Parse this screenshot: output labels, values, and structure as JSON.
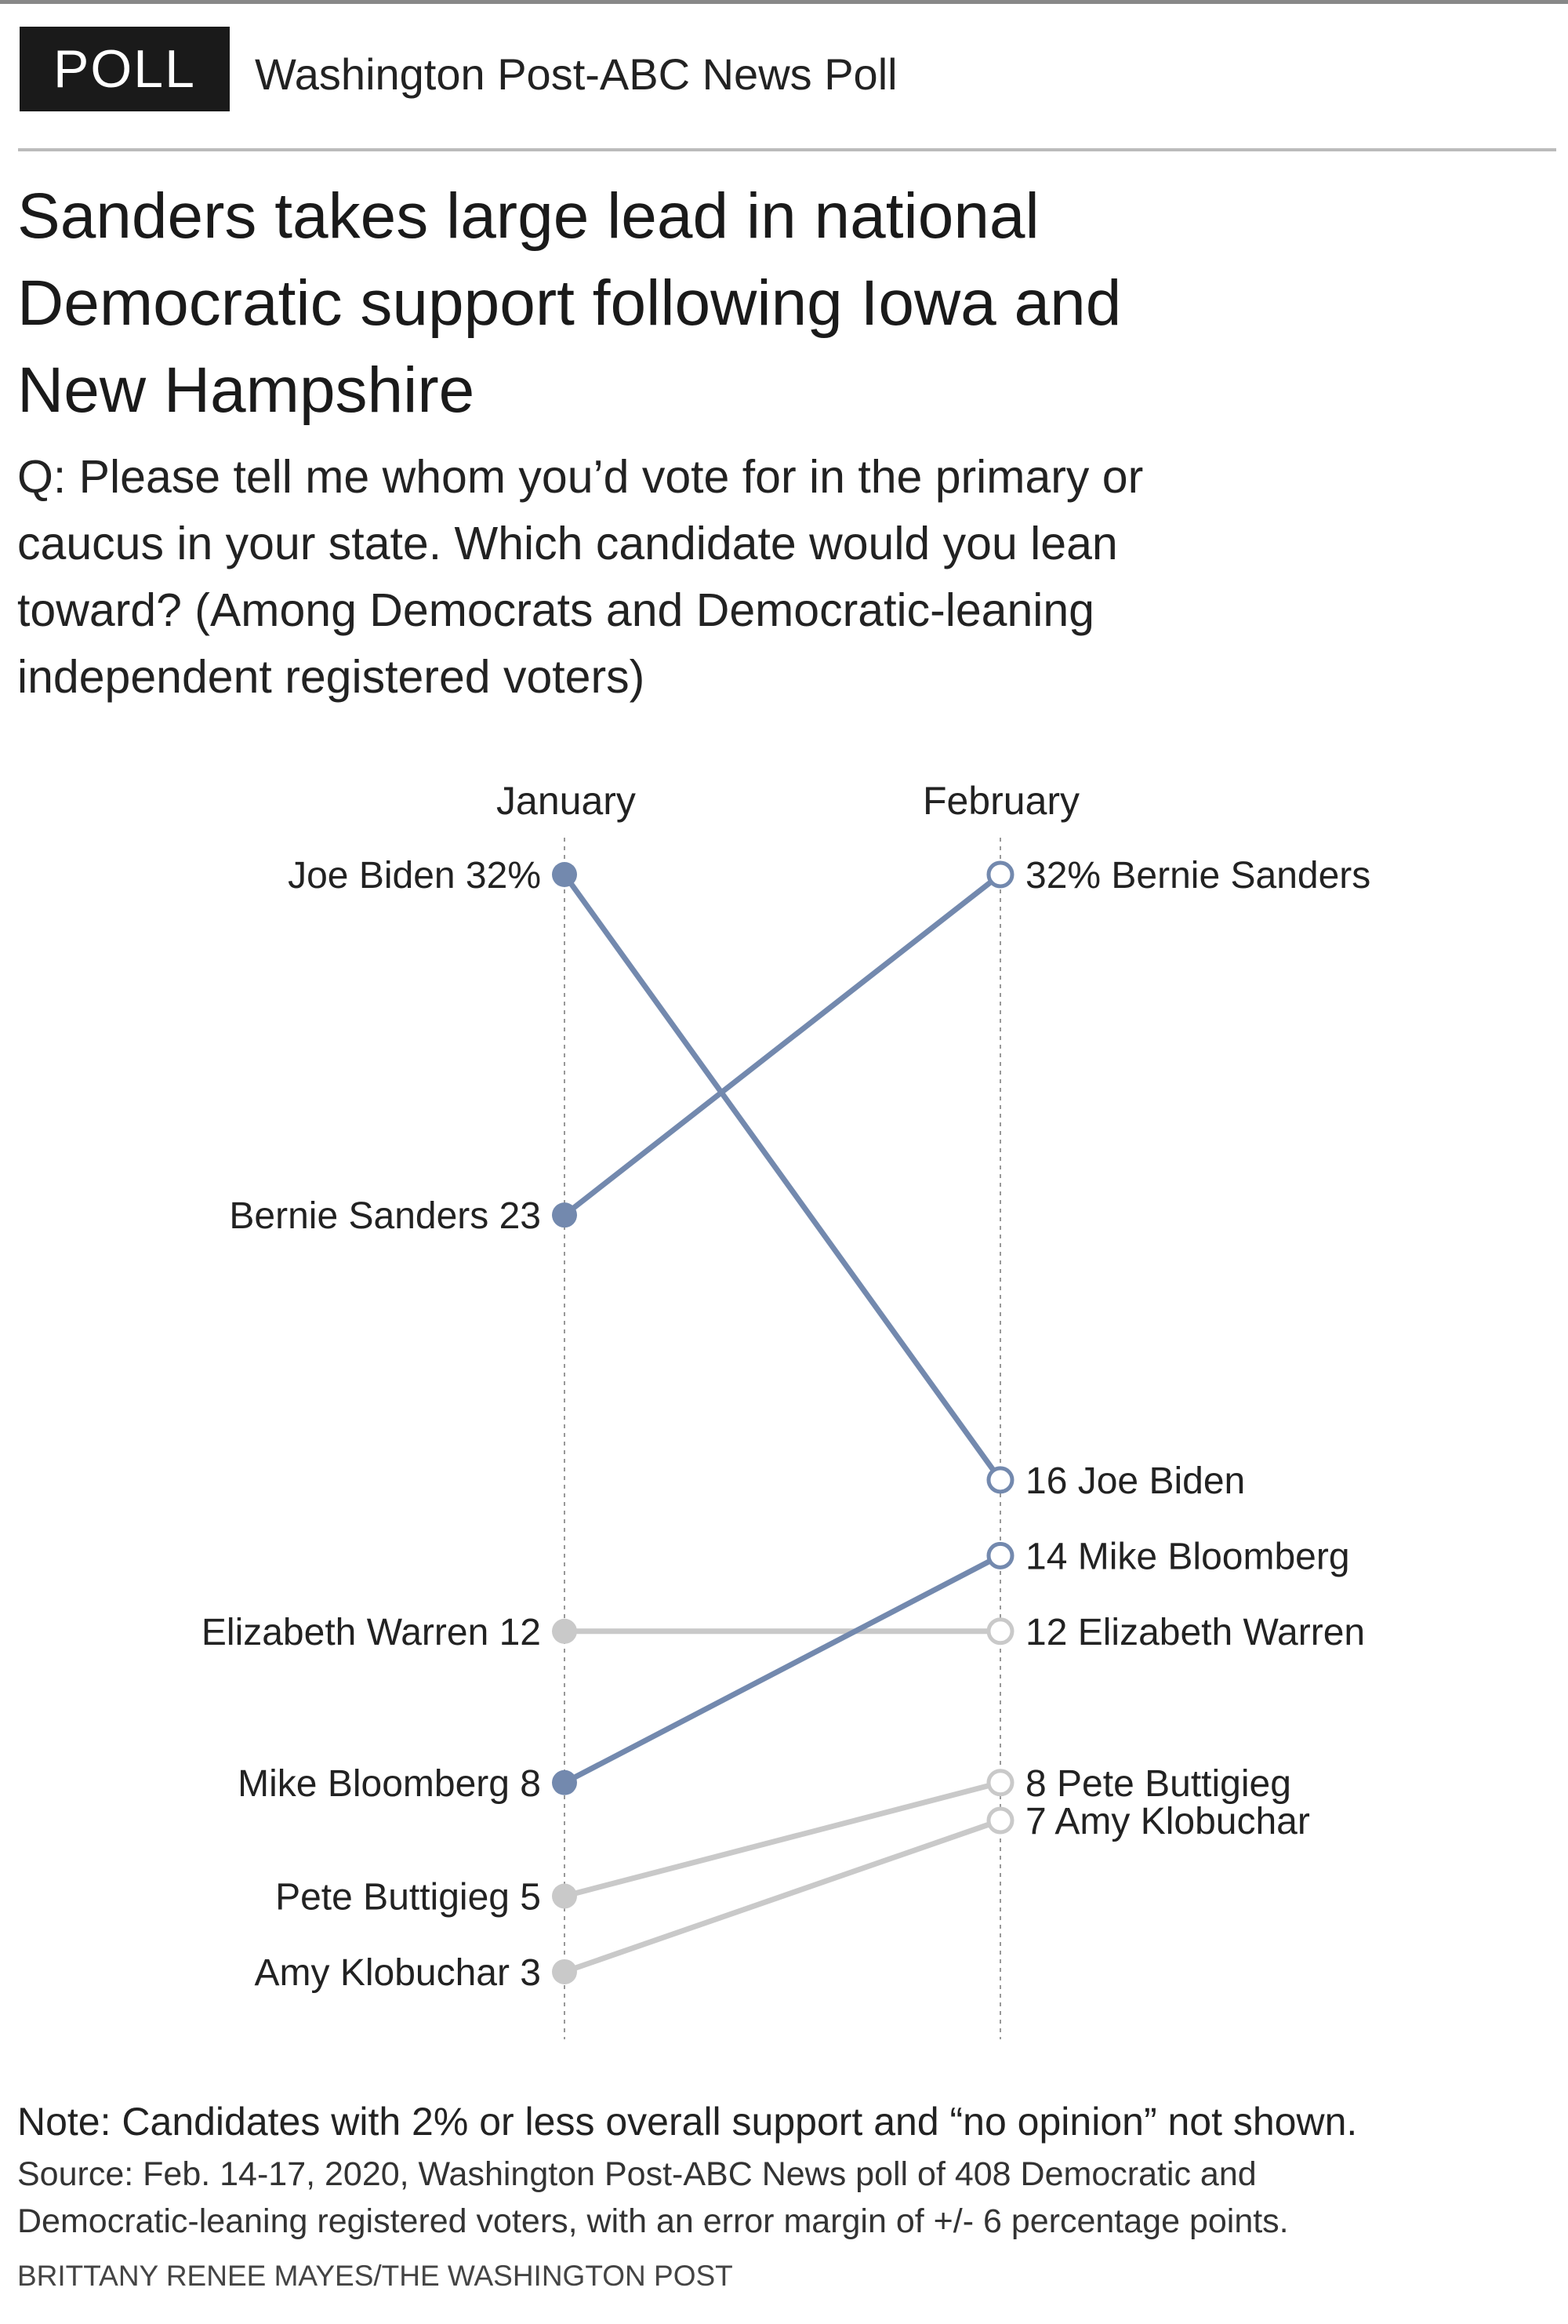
{
  "header": {
    "badge": "POLL",
    "label": "Washington Post-ABC News Poll"
  },
  "title_lines": [
    "Sanders takes large lead in national",
    "Democratic support following Iowa and",
    "New Hampshire"
  ],
  "question_lines": [
    "Q: Please tell me whom you’d vote for in the primary or",
    "caucus in your state. Which candidate would you lean",
    "toward? (Among Democrats and Democratic-leaning",
    "independent registered voters)"
  ],
  "chart_data": {
    "type": "line",
    "subtype": "slope",
    "categories": [
      "January",
      "February"
    ],
    "ylabel": "",
    "xlabel": "",
    "unit": "%",
    "grid": false,
    "colors": {
      "highlight": "#7389ae",
      "muted": "#c9c9c9"
    },
    "series": [
      {
        "name": "Joe Biden",
        "values": [
          32,
          16
        ],
        "jan_label": "32%",
        "feb_label": "16",
        "highlight": true
      },
      {
        "name": "Bernie Sanders",
        "values": [
          23,
          32
        ],
        "jan_label": "23",
        "feb_label": "32%",
        "highlight": true
      },
      {
        "name": "Elizabeth Warren",
        "values": [
          12,
          12
        ],
        "jan_label": "12",
        "feb_label": "12",
        "highlight": false
      },
      {
        "name": "Mike Bloomberg",
        "values": [
          8,
          14
        ],
        "jan_label": "8",
        "feb_label": "14",
        "highlight": true
      },
      {
        "name": "Pete Buttigieg",
        "values": [
          5,
          8
        ],
        "jan_label": "5",
        "feb_label": "8",
        "highlight": false
      },
      {
        "name": "Amy Klobuchar",
        "values": [
          3,
          7
        ],
        "jan_label": "3",
        "feb_label": "7",
        "highlight": false
      }
    ]
  },
  "footer": {
    "note": "Note: Candidates with 2% or less overall support and “no opinion” not shown.",
    "source_lines": [
      "Source: Feb. 14-17, 2020, Washington Post-ABC News poll of 408 Democratic and",
      "Democratic-leaning registered voters, with an error margin of +/- 6 percentage points."
    ],
    "credit": "BRITTANY RENEE MAYES/THE WASHINGTON POST"
  }
}
